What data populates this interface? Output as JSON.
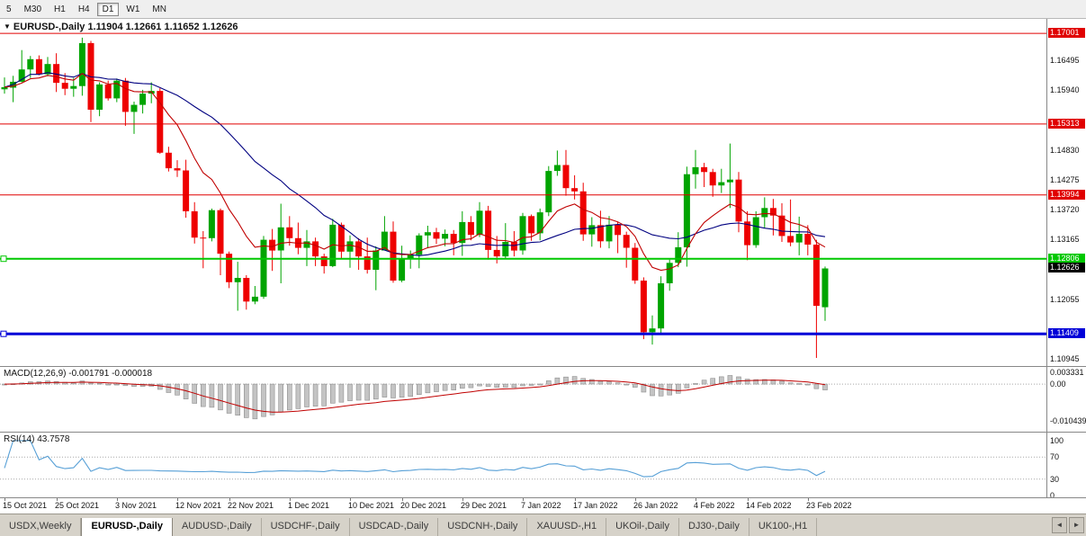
{
  "icons": {
    "chart_menu": "▼",
    "tab_prev": "◄",
    "tab_next": "►"
  },
  "toolbar": {
    "timeframes": [
      "5",
      "M30",
      "H1",
      "H4",
      "D1",
      "W1",
      "MN"
    ],
    "active": "D1"
  },
  "chart": {
    "title": "EURUSD-,Daily",
    "ohlc_text": "1.11904 1.12661 1.11652 1.12626",
    "price_scale": {
      "top": 1.1727,
      "bottom": 1.1081
    },
    "axis_ticks": [
      {
        "text": "1.16495",
        "value": 1.16495
      },
      {
        "text": "1.15940",
        "value": 1.1594
      },
      {
        "text": "1.14830",
        "value": 1.1483
      },
      {
        "text": "1.14275",
        "value": 1.14275
      },
      {
        "text": "1.13720",
        "value": 1.1372
      },
      {
        "text": "1.13165",
        "value": 1.13165
      },
      {
        "text": "1.12055",
        "value": 1.12055
      },
      {
        "text": "1.10945",
        "value": 1.10945
      }
    ],
    "levels": [
      {
        "label": "1.17001",
        "price": 1.17001,
        "color": "#e00000",
        "width": 1,
        "marker": false
      },
      {
        "label": "1.15313",
        "price": 1.15313,
        "color": "#e00000",
        "width": 1,
        "marker": false
      },
      {
        "label": "1.13994",
        "price": 1.13994,
        "color": "#e00000",
        "width": 1,
        "marker": false
      },
      {
        "label": "1.12806",
        "price": 1.12806,
        "color": "#00c800",
        "width": 2,
        "marker": true
      },
      {
        "label": "1.11409",
        "price": 1.11409,
        "color": "#0000d8",
        "width": 3,
        "marker": true
      }
    ],
    "current_price": {
      "label": "1.12626",
      "price": 1.12626,
      "bg": "#000000"
    },
    "colors": {
      "bull": "#00a400",
      "bear": "#ee0000",
      "ma_fast": "#c00000",
      "ma_slow": "#000080",
      "macd_hist_fill": "#c4c4c4",
      "macd_hist_stroke": "#8f8f8f",
      "macd_signal": "#c00000",
      "rsi_line": "#569fd6",
      "grid_dotted": "#a8a8a8"
    }
  },
  "macd": {
    "label": "MACD(12,26,9) -0.001791 -0.000018",
    "scale": {
      "top": 0.00486,
      "bottom": -0.0135
    },
    "ticks": [
      {
        "text": "0.003331",
        "value": 0.003331
      },
      {
        "text": "0.00",
        "value": 0
      },
      {
        "text": "-0.010439",
        "value": -0.010439
      }
    ],
    "zero_value": 0
  },
  "rsi": {
    "label": "RSI(14) 43.7578",
    "ticks": [
      {
        "text": "100",
        "value": 100
      },
      {
        "text": "70",
        "value": 70
      },
      {
        "text": "30",
        "value": 30
      },
      {
        "text": "0",
        "value": 0
      }
    ],
    "dotted_levels": [
      70,
      30
    ]
  },
  "tabs": {
    "items": [
      "USDX,Weekly",
      "EURUSD-,Daily",
      "AUDUSD-,Daily",
      "USDCHF-,Daily",
      "USDCAD-,Daily",
      "USDCNH-,Daily",
      "XAUUSD-,H1",
      "UKOil-,Daily",
      "DJ30-,Daily",
      "UK100-,H1"
    ],
    "active_index": 1
  },
  "chart_data": {
    "type": "candlestick",
    "symbol": "EURUSD-",
    "timeframe": "Daily",
    "current_bar": {
      "open": 1.11904,
      "high": 1.12661,
      "low": 1.11652,
      "close": 1.12626
    },
    "overlays": [
      {
        "name": "ma-slow",
        "kind": "sma",
        "period": 24,
        "color": "#000080"
      },
      {
        "name": "ma-fast",
        "kind": "ema",
        "period": 10,
        "color": "#c00000"
      }
    ],
    "sub_indicators": [
      {
        "name": "MACD",
        "params": [
          12,
          26,
          9
        ],
        "values_shown": [
          -0.001791,
          -1.8e-05
        ]
      },
      {
        "name": "RSI",
        "params": [
          14
        ],
        "value_shown": 43.7578
      }
    ],
    "x_labels": [
      {
        "text": "15 Oct 2021",
        "index": 0
      },
      {
        "text": "25 Oct 2021",
        "index": 6
      },
      {
        "text": "3 Nov 2021",
        "index": 13
      },
      {
        "text": "12 Nov 2021",
        "index": 20
      },
      {
        "text": "22 Nov 2021",
        "index": 26
      },
      {
        "text": "1 Dec 2021",
        "index": 33
      },
      {
        "text": "10 Dec 2021",
        "index": 40
      },
      {
        "text": "20 Dec 2021",
        "index": 46
      },
      {
        "text": "29 Dec 2021",
        "index": 53
      },
      {
        "text": "7 Jan 2022",
        "index": 60
      },
      {
        "text": "17 Jan 2022",
        "index": 66
      },
      {
        "text": "26 Jan 2022",
        "index": 73
      },
      {
        "text": "4 Feb 2022",
        "index": 80
      },
      {
        "text": "14 Feb 2022",
        "index": 86
      },
      {
        "text": "23 Feb 2022",
        "index": 93
      }
    ],
    "candles": [
      [
        1.1596,
        1.1618,
        1.1588,
        1.16
      ],
      [
        1.1599,
        1.1621,
        1.1572,
        1.161
      ],
      [
        1.161,
        1.1669,
        1.1609,
        1.1633
      ],
      [
        1.1633,
        1.1658,
        1.1617,
        1.1652
      ],
      [
        1.1652,
        1.1659,
        1.1622,
        1.1624
      ],
      [
        1.1624,
        1.1656,
        1.162,
        1.1643
      ],
      [
        1.1643,
        1.1663,
        1.1591,
        1.1608
      ],
      [
        1.1608,
        1.1626,
        1.1585,
        1.1597
      ],
      [
        1.1597,
        1.1617,
        1.1582,
        1.1602
      ],
      [
        1.1602,
        1.1692,
        1.1584,
        1.1682
      ],
      [
        1.1682,
        1.1686,
        1.1535,
        1.1558
      ],
      [
        1.1558,
        1.1609,
        1.1546,
        1.1605
      ],
      [
        1.1605,
        1.1612,
        1.1575,
        1.1579
      ],
      [
        1.1579,
        1.1616,
        1.1572,
        1.1612
      ],
      [
        1.1612,
        1.1617,
        1.1528,
        1.1554
      ],
      [
        1.1554,
        1.1573,
        1.1513,
        1.1567
      ],
      [
        1.1567,
        1.1595,
        1.1551,
        1.1588
      ],
      [
        1.1588,
        1.1609,
        1.157,
        1.1593
      ],
      [
        1.1593,
        1.1598,
        1.1476,
        1.1478
      ],
      [
        1.1478,
        1.1489,
        1.1443,
        1.1449
      ],
      [
        1.1449,
        1.1464,
        1.1433,
        1.1445
      ],
      [
        1.1445,
        1.1465,
        1.1357,
        1.1369
      ],
      [
        1.1369,
        1.1386,
        1.1309,
        1.132
      ],
      [
        1.132,
        1.1332,
        1.1263,
        1.1319
      ],
      [
        1.1319,
        1.1374,
        1.1313,
        1.1371
      ],
      [
        1.1371,
        1.1374,
        1.125,
        1.129
      ],
      [
        1.129,
        1.1294,
        1.1226,
        1.1237
      ],
      [
        1.1237,
        1.1275,
        1.1184,
        1.1245
      ],
      [
        1.1245,
        1.125,
        1.1186,
        1.1201
      ],
      [
        1.1201,
        1.123,
        1.1196,
        1.121
      ],
      [
        1.121,
        1.1323,
        1.1206,
        1.1316
      ],
      [
        1.1316,
        1.1336,
        1.1258,
        1.1296
      ],
      [
        1.1296,
        1.1383,
        1.1235,
        1.1339
      ],
      [
        1.1339,
        1.136,
        1.1305,
        1.1319
      ],
      [
        1.1319,
        1.1348,
        1.1289,
        1.1301
      ],
      [
        1.1301,
        1.1334,
        1.1267,
        1.1313
      ],
      [
        1.1313,
        1.132,
        1.1267,
        1.1285
      ],
      [
        1.1285,
        1.129,
        1.1253,
        1.1267
      ],
      [
        1.1267,
        1.1355,
        1.1265,
        1.1344
      ],
      [
        1.1344,
        1.1348,
        1.128,
        1.1294
      ],
      [
        1.1294,
        1.1324,
        1.1264,
        1.1313
      ],
      [
        1.1313,
        1.1319,
        1.126,
        1.1285
      ],
      [
        1.1285,
        1.132,
        1.1253,
        1.126
      ],
      [
        1.126,
        1.1304,
        1.1222,
        1.1296
      ],
      [
        1.1296,
        1.136,
        1.1296,
        1.1331
      ],
      [
        1.1331,
        1.135,
        1.1236,
        1.124
      ],
      [
        1.124,
        1.1305,
        1.1237,
        1.128
      ],
      [
        1.128,
        1.1296,
        1.1262,
        1.1288
      ],
      [
        1.1288,
        1.1328,
        1.1263,
        1.1324
      ],
      [
        1.1324,
        1.1342,
        1.13,
        1.133
      ],
      [
        1.133,
        1.1338,
        1.1308,
        1.1318
      ],
      [
        1.1318,
        1.1335,
        1.1304,
        1.1327
      ],
      [
        1.1327,
        1.1334,
        1.1287,
        1.131
      ],
      [
        1.131,
        1.1369,
        1.1286,
        1.1349
      ],
      [
        1.1349,
        1.136,
        1.1315,
        1.1325
      ],
      [
        1.1325,
        1.1386,
        1.1321,
        1.137
      ],
      [
        1.137,
        1.1379,
        1.1279,
        1.1297
      ],
      [
        1.1297,
        1.1323,
        1.1272,
        1.1285
      ],
      [
        1.1285,
        1.1347,
        1.128,
        1.1312
      ],
      [
        1.1312,
        1.1332,
        1.1285,
        1.1296
      ],
      [
        1.1296,
        1.1366,
        1.1288,
        1.136
      ],
      [
        1.136,
        1.1363,
        1.1314,
        1.1328
      ],
      [
        1.1328,
        1.1374,
        1.1315,
        1.1367
      ],
      [
        1.1367,
        1.1453,
        1.136,
        1.1444
      ],
      [
        1.1444,
        1.1482,
        1.1435,
        1.1455
      ],
      [
        1.1455,
        1.1483,
        1.1398,
        1.1412
      ],
      [
        1.1412,
        1.1436,
        1.1391,
        1.1406
      ],
      [
        1.1406,
        1.1422,
        1.1314,
        1.1326
      ],
      [
        1.1326,
        1.1358,
        1.1303,
        1.1343
      ],
      [
        1.1343,
        1.137,
        1.1301,
        1.1313
      ],
      [
        1.1313,
        1.136,
        1.13,
        1.1344
      ],
      [
        1.1344,
        1.1349,
        1.1291,
        1.1325
      ],
      [
        1.1325,
        1.1331,
        1.1264,
        1.1301
      ],
      [
        1.1301,
        1.131,
        1.1234,
        1.124
      ],
      [
        1.124,
        1.1246,
        1.1131,
        1.1144
      ],
      [
        1.1144,
        1.1175,
        1.1121,
        1.1151
      ],
      [
        1.1151,
        1.1248,
        1.1141,
        1.1235
      ],
      [
        1.1235,
        1.1279,
        1.1221,
        1.1273
      ],
      [
        1.1273,
        1.133,
        1.1265,
        1.1302
      ],
      [
        1.1302,
        1.1452,
        1.1266,
        1.1438
      ],
      [
        1.1438,
        1.1483,
        1.1411,
        1.1451
      ],
      [
        1.1451,
        1.1459,
        1.1414,
        1.1442
      ],
      [
        1.1442,
        1.1448,
        1.1396,
        1.1417
      ],
      [
        1.1417,
        1.1448,
        1.1403,
        1.1423
      ],
      [
        1.1423,
        1.1495,
        1.1375,
        1.1428
      ],
      [
        1.1428,
        1.1442,
        1.133,
        1.135
      ],
      [
        1.135,
        1.1369,
        1.1278,
        1.1306
      ],
      [
        1.1306,
        1.1369,
        1.1301,
        1.1358
      ],
      [
        1.1358,
        1.1395,
        1.1338,
        1.1375
      ],
      [
        1.1375,
        1.1392,
        1.1324,
        1.1361
      ],
      [
        1.1361,
        1.1384,
        1.1312,
        1.1323
      ],
      [
        1.1323,
        1.1391,
        1.1304,
        1.1311
      ],
      [
        1.1311,
        1.1359,
        1.1287,
        1.1327
      ],
      [
        1.1327,
        1.1343,
        1.1287,
        1.1307
      ],
      [
        1.1307,
        1.1316,
        1.1096,
        1.1193
      ],
      [
        1.11904,
        1.12661,
        1.11652,
        1.12626
      ]
    ]
  }
}
